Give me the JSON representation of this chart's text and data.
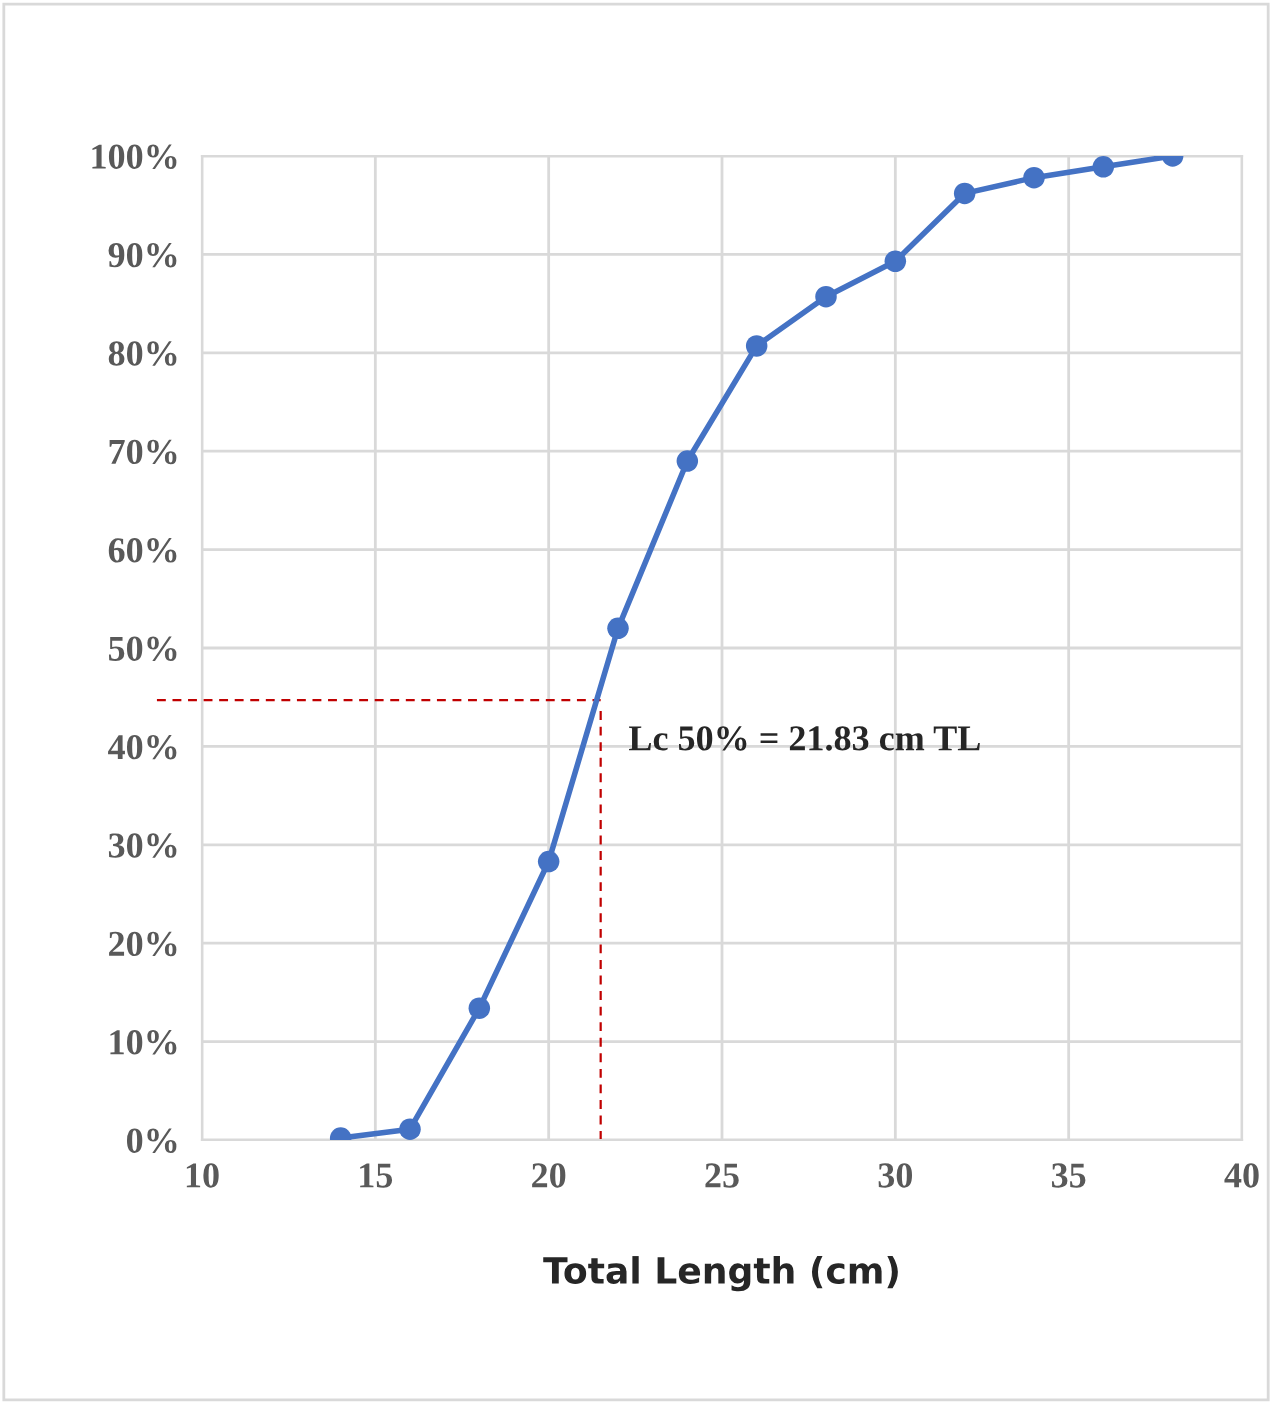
{
  "chart_data": {
    "type": "line",
    "xlabel": "Total Length (cm)",
    "x": [
      14,
      16,
      18,
      20,
      22,
      24,
      26,
      28,
      30,
      32,
      34,
      36,
      38
    ],
    "series": [
      {
        "color": "#4472c4",
        "values": [
          0.2,
          1.1,
          13.4,
          28.3,
          52.0,
          69.0,
          80.7,
          85.7,
          89.3,
          96.2,
          97.8,
          98.9,
          100
        ]
      }
    ],
    "xlim": [
      10,
      40
    ],
    "xticks": [
      10,
      15,
      20,
      25,
      30,
      35,
      40
    ],
    "ylim": [
      0,
      100
    ],
    "yticks": [
      {
        "value": 0,
        "label": "0%"
      },
      {
        "value": 10,
        "label": "10%"
      },
      {
        "value": 20,
        "label": "20%"
      },
      {
        "value": 30,
        "label": "30%"
      },
      {
        "value": 40,
        "label": "40%"
      },
      {
        "value": 50,
        "label": "50%"
      },
      {
        "value": 60,
        "label": "60%"
      },
      {
        "value": 70,
        "label": "70%"
      },
      {
        "value": 80,
        "label": "80%"
      },
      {
        "value": 90,
        "label": "90%"
      },
      {
        "value": 100,
        "label": "100%"
      }
    ],
    "ref_lines": [
      {
        "axis": "y",
        "value": 44.7,
        "color": "#c00000",
        "line_style": "dashed"
      },
      {
        "axis": "x",
        "value": 21.5,
        "color": "#c00000",
        "line_style": "dashed"
      }
    ],
    "annotations": [
      "Lc 50% = 21.83 cm TL"
    ],
    "grid": true,
    "marker": "circle",
    "line_style": "solid",
    "legend": false
  }
}
